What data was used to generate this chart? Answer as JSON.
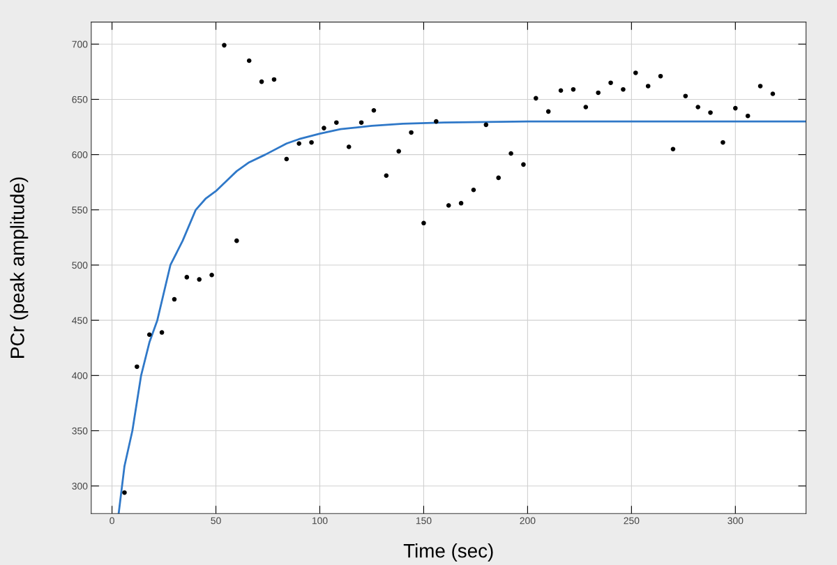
{
  "chart_data": {
    "type": "scatter",
    "xlabel": "Time (sec)",
    "ylabel": "PCr (peak amplitude)",
    "xlim": [
      -10,
      334
    ],
    "ylim": [
      275,
      720
    ],
    "xticks": [
      0,
      50,
      100,
      150,
      200,
      250,
      300
    ],
    "yticks": [
      300,
      350,
      400,
      450,
      500,
      550,
      600,
      650,
      700
    ],
    "grid": true,
    "marker": "circle",
    "series": [
      {
        "color": "#000000",
        "x": [
          6,
          12,
          18,
          24,
          30,
          36,
          42,
          48,
          54,
          60,
          66,
          72,
          78,
          84,
          90,
          96,
          102,
          108,
          114,
          120,
          126,
          132,
          138,
          144,
          150,
          156,
          162,
          168,
          174,
          180,
          186,
          192,
          198,
          204,
          210,
          216,
          222,
          228,
          234,
          240,
          246,
          252,
          258,
          264,
          270,
          276,
          282,
          288,
          294,
          300,
          306,
          312,
          318
        ],
        "values": [
          294,
          408,
          437,
          439,
          469,
          489,
          487,
          491,
          699,
          522,
          685,
          666,
          668,
          596,
          610,
          611,
          624,
          629,
          607,
          629,
          640,
          581,
          603,
          620,
          538,
          630,
          554,
          556,
          568,
          627,
          579,
          601,
          591,
          651,
          639,
          658,
          659,
          643,
          656,
          665,
          659,
          674,
          662,
          671,
          605,
          653,
          643,
          638,
          611,
          642,
          635,
          662,
          655
        ]
      },
      {
        "type": "line",
        "color": "#2f78c8",
        "marker": "none",
        "x": [
          3.2,
          6,
          9.8,
          14,
          18,
          21.8,
          28.1,
          34,
          40.3,
          45,
          50,
          60,
          66,
          73.8,
          84,
          90,
          100,
          110,
          125,
          140,
          160,
          200,
          334
        ],
        "values": [
          275,
          318,
          350,
          400,
          430,
          450,
          500,
          522,
          550,
          560,
          567,
          585,
          593,
          600,
          610,
          614,
          619,
          623,
          626,
          628,
          629,
          630,
          630
        ]
      }
    ]
  }
}
